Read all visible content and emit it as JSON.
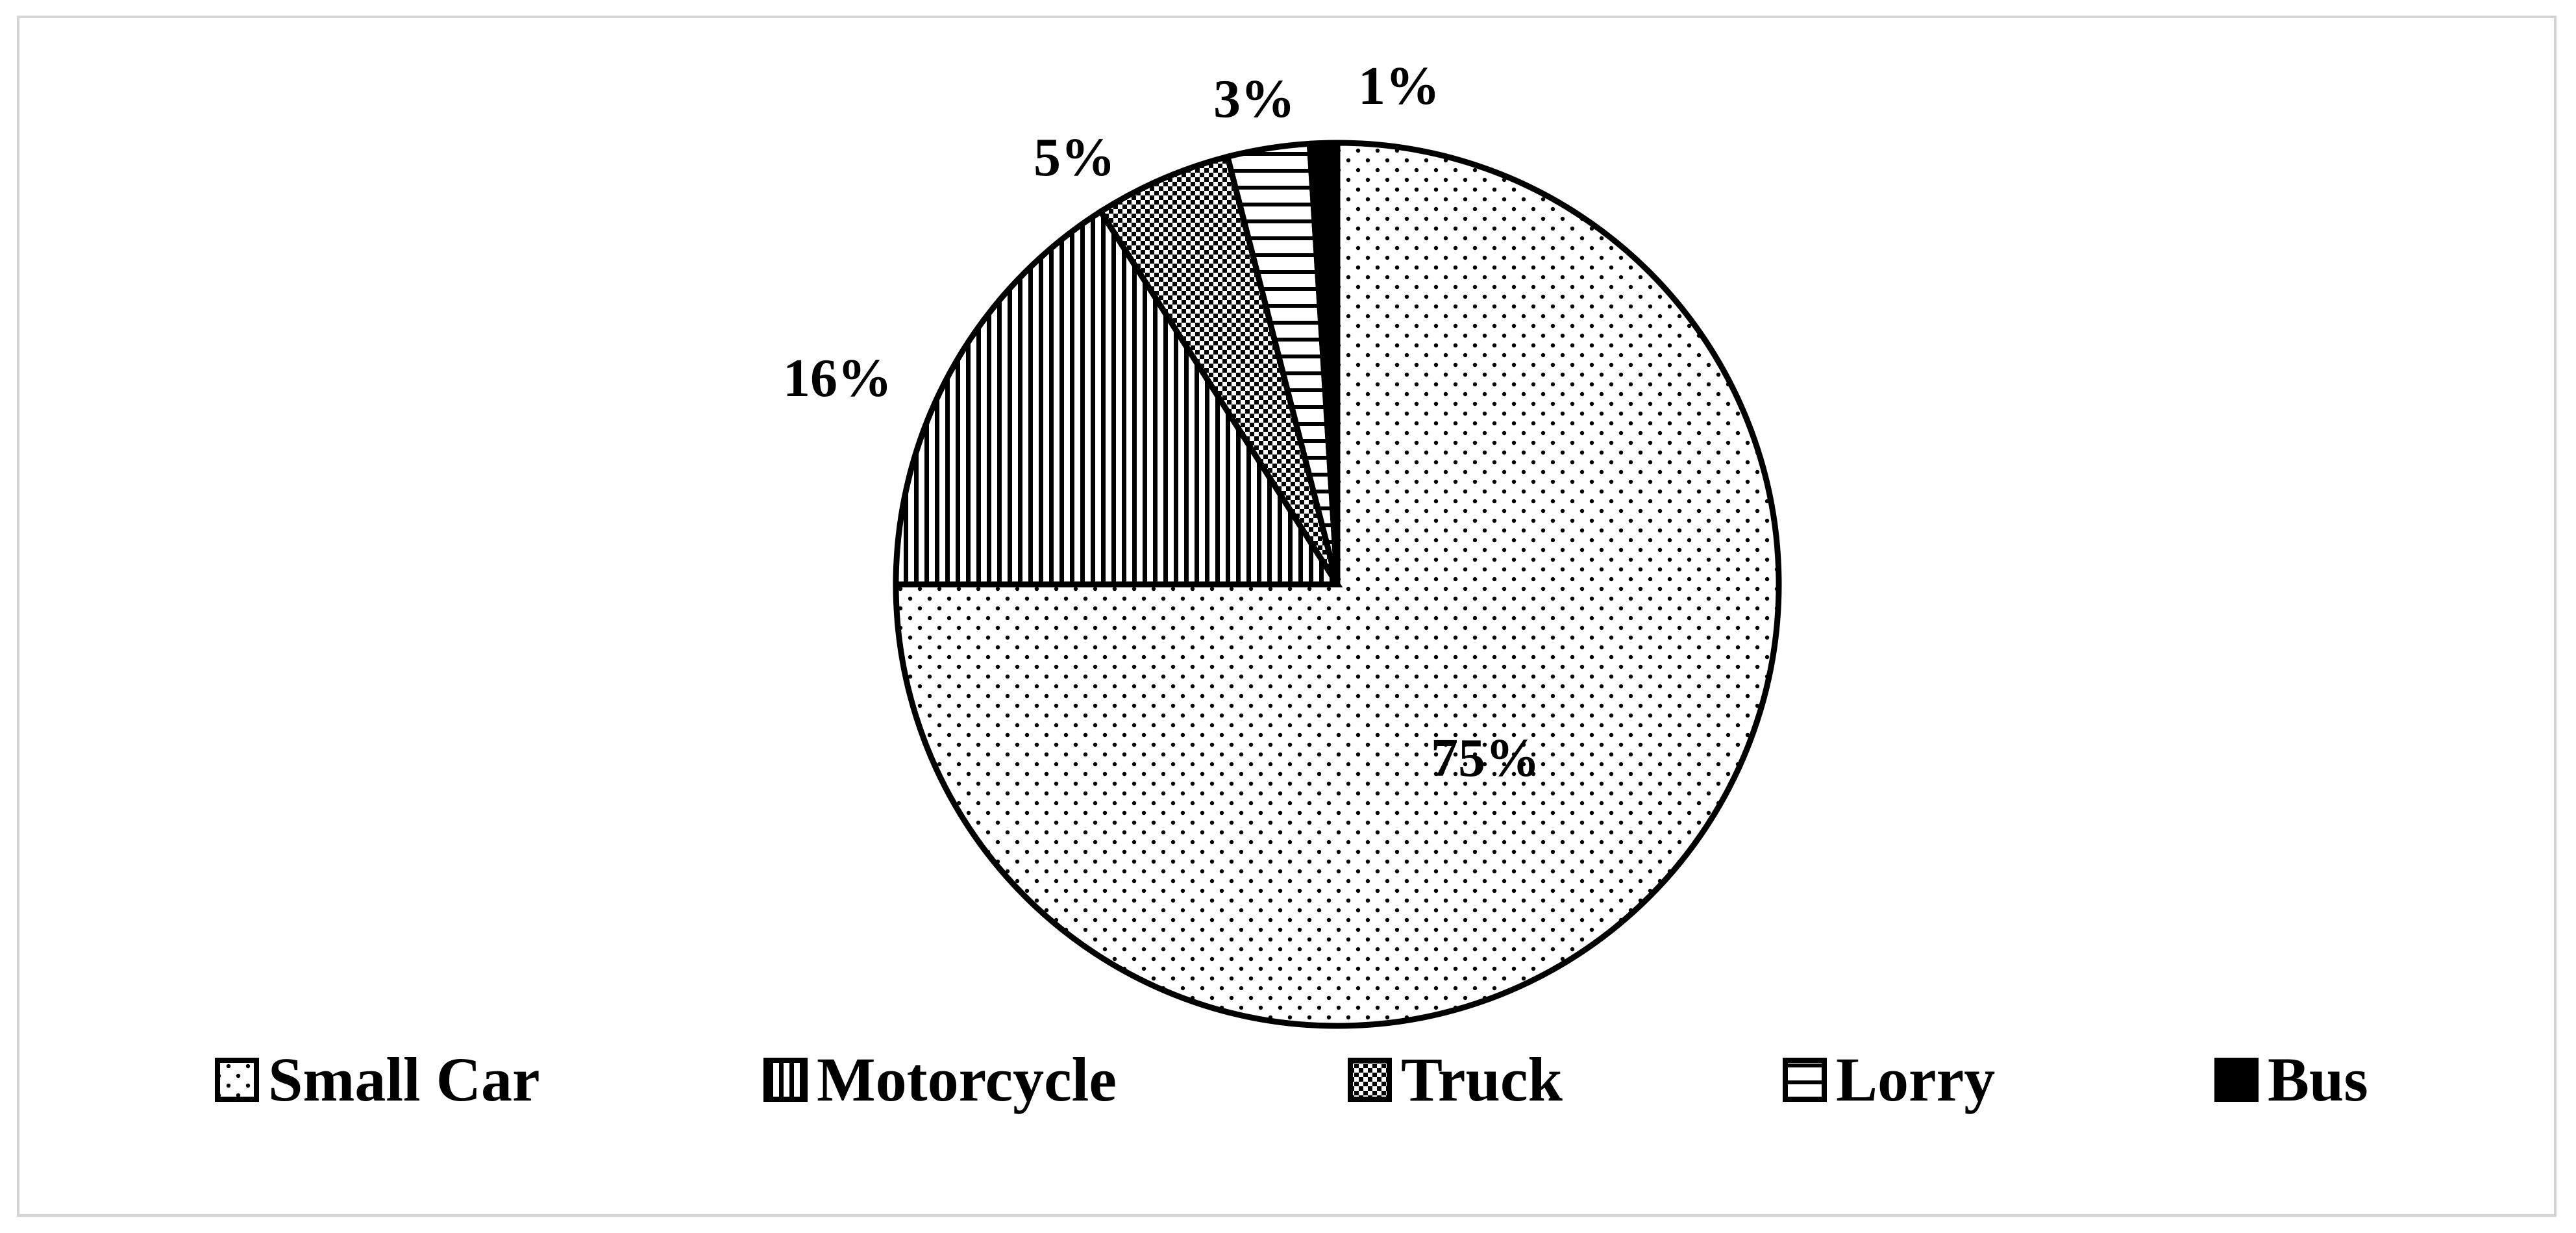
{
  "chart_data": {
    "type": "pie",
    "title": "",
    "slices": [
      {
        "label": "Small Car",
        "value": 75,
        "display": "75%",
        "pattern": "dots"
      },
      {
        "label": "Motorcycle",
        "value": 16,
        "display": "16%",
        "pattern": "vertical-lines"
      },
      {
        "label": "Truck",
        "value": 5,
        "display": "5%",
        "pattern": "checker"
      },
      {
        "label": "Lorry",
        "value": 3,
        "display": "3%",
        "pattern": "horizontal-lines"
      },
      {
        "label": "Bus",
        "value": 1,
        "display": "1%",
        "pattern": "solid"
      }
    ],
    "start_angle": "12 o'clock",
    "direction": "clockwise",
    "legend_position": "bottom",
    "colors": {
      "fill": "#000000",
      "background": "#ffffff",
      "outline": "#000000"
    }
  }
}
